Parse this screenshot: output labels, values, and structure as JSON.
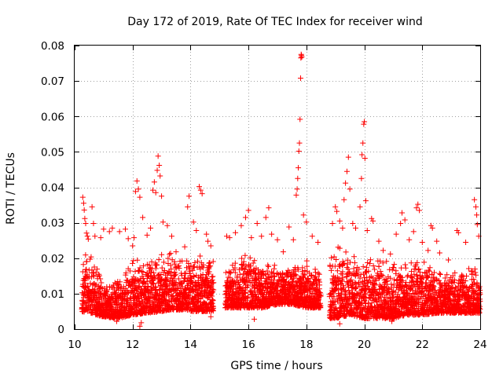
{
  "chart_data": {
    "type": "scatter",
    "title": "Day 172 of 2019, Rate Of TEC Index for receiver wind",
    "xlabel": "GPS time / hours",
    "ylabel": "ROTI / TECUs",
    "xlim": [
      10,
      24
    ],
    "ylim": [
      0,
      0.08
    ],
    "xticks": [
      10,
      12,
      14,
      16,
      18,
      20,
      22,
      24
    ],
    "yticks": [
      0,
      0.01,
      0.02,
      0.03,
      0.04,
      0.05,
      0.06,
      0.07,
      0.08
    ],
    "xtick_labels": [
      "10",
      "12",
      "14",
      "16",
      "18",
      "20",
      "22",
      "24"
    ],
    "ytick_labels": [
      "0",
      "0.01",
      "0.02",
      "0.03",
      "0.04",
      "0.05",
      "0.06",
      "0.07",
      "0.08"
    ],
    "grid": true,
    "marker": "+",
    "marker_color": "#ff0000",
    "data_gaps_hours": [
      [
        14.8,
        15.2
      ],
      [
        18.5,
        18.8
      ]
    ],
    "series": [
      {
        "name": "ROTI",
        "points": [
          [
            10.28,
            0.0372
          ],
          [
            10.31,
            0.0355
          ],
          [
            10.33,
            0.0336
          ],
          [
            10.35,
            0.0312
          ],
          [
            10.38,
            0.0298
          ],
          [
            10.41,
            0.0271
          ],
          [
            10.44,
            0.0262
          ],
          [
            10.47,
            0.0254
          ],
          [
            10.6,
            0.0345
          ],
          [
            10.65,
            0.0298
          ],
          [
            10.7,
            0.0262
          ],
          [
            10.9,
            0.0258
          ],
          [
            11.0,
            0.0282
          ],
          [
            11.2,
            0.0275
          ],
          [
            11.3,
            0.0285
          ],
          [
            11.55,
            0.0275
          ],
          [
            11.75,
            0.0282
          ],
          [
            11.85,
            0.0255
          ],
          [
            12.0,
            0.0235
          ],
          [
            12.05,
            0.0258
          ],
          [
            12.1,
            0.0388
          ],
          [
            12.15,
            0.0418
          ],
          [
            12.2,
            0.0395
          ],
          [
            12.25,
            0.0372
          ],
          [
            12.35,
            0.0315
          ],
          [
            12.5,
            0.0265
          ],
          [
            12.62,
            0.0285
          ],
          [
            12.7,
            0.0392
          ],
          [
            12.75,
            0.0415
          ],
          [
            12.8,
            0.0385
          ],
          [
            12.85,
            0.0448
          ],
          [
            12.88,
            0.0488
          ],
          [
            12.92,
            0.0462
          ],
          [
            12.95,
            0.0432
          ],
          [
            13.0,
            0.0375
          ],
          [
            13.05,
            0.0302
          ],
          [
            13.2,
            0.0292
          ],
          [
            13.35,
            0.0262
          ],
          [
            13.5,
            0.0218
          ],
          [
            13.8,
            0.0232
          ],
          [
            13.9,
            0.0345
          ],
          [
            13.95,
            0.0375
          ],
          [
            14.1,
            0.0302
          ],
          [
            14.2,
            0.0278
          ],
          [
            14.3,
            0.0402
          ],
          [
            14.35,
            0.0392
          ],
          [
            14.4,
            0.0382
          ],
          [
            14.55,
            0.0268
          ],
          [
            14.6,
            0.0248
          ],
          [
            14.7,
            0.0235
          ],
          [
            15.25,
            0.0262
          ],
          [
            15.35,
            0.0258
          ],
          [
            15.55,
            0.0272
          ],
          [
            15.75,
            0.0292
          ],
          [
            15.9,
            0.0315
          ],
          [
            16.0,
            0.0335
          ],
          [
            16.1,
            0.0258
          ],
          [
            16.3,
            0.0298
          ],
          [
            16.45,
            0.0262
          ],
          [
            16.6,
            0.0315
          ],
          [
            16.7,
            0.0342
          ],
          [
            16.8,
            0.0268
          ],
          [
            17.0,
            0.0252
          ],
          [
            17.2,
            0.0218
          ],
          [
            17.4,
            0.0288
          ],
          [
            17.55,
            0.0252
          ],
          [
            17.65,
            0.0378
          ],
          [
            17.68,
            0.0395
          ],
          [
            17.7,
            0.0425
          ],
          [
            17.72,
            0.0455
          ],
          [
            17.74,
            0.0502
          ],
          [
            17.76,
            0.0525
          ],
          [
            17.78,
            0.0592
          ],
          [
            17.8,
            0.0708
          ],
          [
            17.81,
            0.0765
          ],
          [
            17.82,
            0.0775
          ],
          [
            17.83,
            0.0772
          ],
          [
            17.84,
            0.0768
          ],
          [
            17.9,
            0.0322
          ],
          [
            18.0,
            0.0302
          ],
          [
            18.2,
            0.0262
          ],
          [
            18.4,
            0.0245
          ],
          [
            18.9,
            0.0298
          ],
          [
            19.0,
            0.0345
          ],
          [
            19.05,
            0.0332
          ],
          [
            19.15,
            0.0305
          ],
          [
            19.25,
            0.0285
          ],
          [
            19.3,
            0.0365
          ],
          [
            19.35,
            0.0412
          ],
          [
            19.4,
            0.0445
          ],
          [
            19.45,
            0.0485
          ],
          [
            19.5,
            0.0395
          ],
          [
            19.6,
            0.0298
          ],
          [
            19.7,
            0.0285
          ],
          [
            19.85,
            0.0345
          ],
          [
            19.9,
            0.0425
          ],
          [
            19.92,
            0.0492
          ],
          [
            19.95,
            0.0525
          ],
          [
            19.98,
            0.0578
          ],
          [
            20.0,
            0.0585
          ],
          [
            20.02,
            0.0482
          ],
          [
            20.05,
            0.0362
          ],
          [
            20.1,
            0.0278
          ],
          [
            20.25,
            0.0312
          ],
          [
            20.3,
            0.0305
          ],
          [
            20.5,
            0.0248
          ],
          [
            20.65,
            0.0222
          ],
          [
            20.9,
            0.0212
          ],
          [
            21.1,
            0.0268
          ],
          [
            21.25,
            0.0298
          ],
          [
            21.3,
            0.0328
          ],
          [
            21.4,
            0.0308
          ],
          [
            21.55,
            0.0252
          ],
          [
            21.7,
            0.0275
          ],
          [
            21.8,
            0.0342
          ],
          [
            21.85,
            0.0352
          ],
          [
            21.9,
            0.0335
          ],
          [
            22.0,
            0.0245
          ],
          [
            22.2,
            0.0222
          ],
          [
            22.3,
            0.0292
          ],
          [
            22.35,
            0.0285
          ],
          [
            22.5,
            0.0248
          ],
          [
            22.6,
            0.0215
          ],
          [
            22.9,
            0.0195
          ],
          [
            23.2,
            0.0278
          ],
          [
            23.25,
            0.0272
          ],
          [
            23.5,
            0.0245
          ],
          [
            23.8,
            0.0365
          ],
          [
            23.85,
            0.0345
          ],
          [
            23.88,
            0.0322
          ],
          [
            23.9,
            0.0295
          ],
          [
            23.95,
            0.0262
          ],
          [
            12.25,
            0.0008
          ],
          [
            12.3,
            0.0018
          ],
          [
            19.15,
            0.0015
          ],
          [
            11.45,
            0.0022
          ],
          [
            16.2,
            0.0028
          ],
          [
            20.95,
            0.0022
          ],
          [
            14.7,
            0.0035
          ],
          [
            23.95,
            0.0045
          ]
        ]
      }
    ],
    "dense_band_profile": {
      "hours": [
        10.25,
        10.5,
        11.0,
        11.5,
        12.0,
        12.5,
        13.0,
        13.5,
        14.0,
        14.5,
        14.8,
        15.2,
        15.5,
        16.0,
        16.5,
        17.0,
        17.5,
        18.0,
        18.5,
        18.8,
        19.0,
        19.5,
        20.0,
        20.5,
        21.0,
        21.5,
        22.0,
        22.5,
        23.0,
        23.5,
        24.0
      ],
      "low": [
        0.005,
        0.0045,
        0.0035,
        0.003,
        0.004,
        0.0045,
        0.005,
        0.0055,
        0.005,
        0.005,
        0.005,
        0.006,
        0.006,
        0.006,
        0.006,
        0.007,
        0.007,
        0.006,
        0.006,
        0.003,
        0.003,
        0.004,
        0.003,
        0.003,
        0.003,
        0.004,
        0.004,
        0.0045,
        0.0045,
        0.0045,
        0.0045
      ],
      "high": [
        0.02,
        0.024,
        0.014,
        0.015,
        0.022,
        0.02,
        0.024,
        0.022,
        0.02,
        0.022,
        0.02,
        0.018,
        0.02,
        0.022,
        0.02,
        0.019,
        0.018,
        0.02,
        0.018,
        0.02,
        0.026,
        0.022,
        0.022,
        0.021,
        0.02,
        0.02,
        0.02,
        0.018,
        0.016,
        0.017,
        0.02
      ]
    }
  }
}
